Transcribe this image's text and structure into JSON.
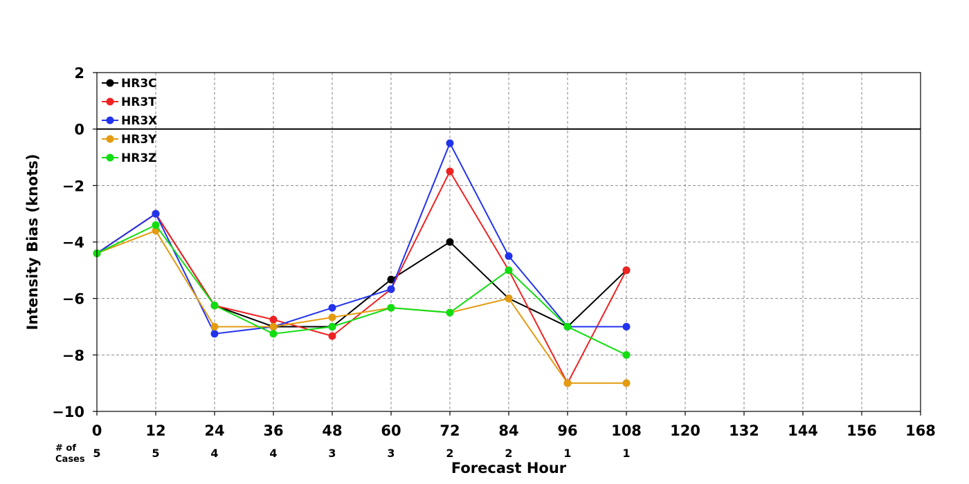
{
  "chart_data": {
    "type": "line",
    "title": "",
    "xlabel": "Forecast Hour",
    "ylabel": "Intensity Bias (knots)",
    "xlim": [
      0,
      168
    ],
    "ylim": [
      -10,
      2
    ],
    "xticks": [
      0,
      12,
      24,
      36,
      48,
      60,
      72,
      84,
      96,
      108,
      120,
      132,
      144,
      156,
      168
    ],
    "yticks": [
      2,
      0,
      -2,
      -4,
      -6,
      -8,
      -10
    ],
    "ytick_labels": [
      "2",
      "0",
      "−2",
      "−4",
      "−6",
      "−8",
      "−10"
    ],
    "grid": true,
    "legend_position": "top-left",
    "zero_line": true,
    "cases_label": "# of\nCases",
    "cases": [
      {
        "x": 0,
        "n": "5"
      },
      {
        "x": 12,
        "n": "5"
      },
      {
        "x": 24,
        "n": "4"
      },
      {
        "x": 36,
        "n": "4"
      },
      {
        "x": 48,
        "n": "3"
      },
      {
        "x": 60,
        "n": "3"
      },
      {
        "x": 72,
        "n": "2"
      },
      {
        "x": 84,
        "n": "2"
      },
      {
        "x": 96,
        "n": "1"
      },
      {
        "x": 108,
        "n": "1"
      }
    ],
    "x": [
      0,
      12,
      24,
      36,
      48,
      60,
      72,
      84,
      96,
      108
    ],
    "series": [
      {
        "name": "HR3C",
        "color": "#000000",
        "values": [
          -4.4,
          -3.0,
          -6.25,
          -7.0,
          -7.0,
          -5.33,
          -4.0,
          -6.0,
          -7.0,
          -5.0
        ]
      },
      {
        "name": "HR3T",
        "color": "#ee2222",
        "values": [
          -4.4,
          -3.0,
          -6.25,
          -6.75,
          -7.33,
          -5.67,
          -1.5,
          -5.0,
          -9.0,
          -5.0
        ]
      },
      {
        "name": "HR3X",
        "color": "#2233ee",
        "values": [
          -4.4,
          -3.0,
          -7.25,
          -7.0,
          -6.33,
          -5.67,
          -0.5,
          -4.5,
          -7.0,
          -7.0
        ]
      },
      {
        "name": "HR3Y",
        "color": "#e39b10",
        "values": [
          -4.4,
          -3.6,
          -7.0,
          -7.0,
          -6.67,
          -6.33,
          -6.5,
          -6.0,
          -9.0,
          -9.0
        ]
      },
      {
        "name": "HR3Z",
        "color": "#11dd11",
        "values": [
          -4.4,
          -3.4,
          -6.25,
          -7.25,
          -7.0,
          -6.33,
          -6.5,
          -5.0,
          -7.0,
          -8.0
        ]
      }
    ]
  }
}
